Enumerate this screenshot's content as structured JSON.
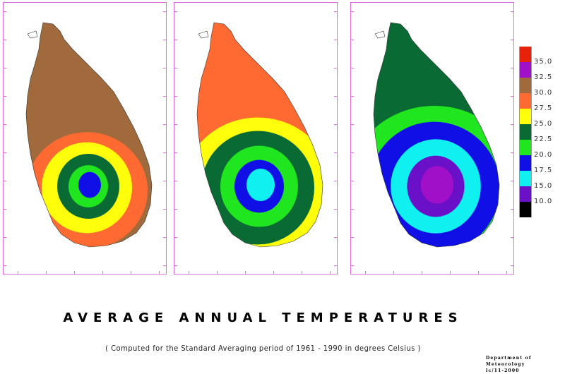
{
  "title": "AVERAGE  ANNUAL TEMPERATURES",
  "subtitle": "( Computed  for the Standard Averaging period  of 1961 - 1990 in degrees Celsius )",
  "credit": {
    "line1": "Department of Meteorology",
    "line2": "lc/11-2000"
  },
  "legend": [
    {
      "label": "35.0",
      "color": "#e8220a"
    },
    {
      "label": "32.5",
      "color": "#a010c8"
    },
    {
      "label": "30.0",
      "color": "#a06a3c"
    },
    {
      "label": "27.5",
      "color": "#ff6a33"
    },
    {
      "label": "25.0",
      "color": "#ffff0c"
    },
    {
      "label": "22.5",
      "color": "#0a6a33"
    },
    {
      "label": "20.0",
      "color": "#1fe61f"
    },
    {
      "label": "17.5",
      "color": "#1010e6"
    },
    {
      "label": "15.0",
      "color": "#10f0f0"
    },
    {
      "label": "10.0",
      "color": "#6a10c8"
    },
    {
      "label": "",
      "color": "#000000"
    }
  ],
  "maps": [
    {
      "name": "map-maximum",
      "layers": [
        "#a06a3c",
        "#ff6a33",
        "#ffff0c",
        "#0a6a33",
        "#1fe61f",
        "#1010e6"
      ]
    },
    {
      "name": "map-mean",
      "layers": [
        "#ff6a33",
        "#ffff0c",
        "#0a6a33",
        "#1fe61f",
        "#1010e6",
        "#10f0f0"
      ]
    },
    {
      "name": "map-minimum",
      "layers": [
        "#0a6a33",
        "#1fe61f",
        "#1010e6",
        "#10f0f0",
        "#6a10c8",
        "#a010c8"
      ]
    }
  ]
}
